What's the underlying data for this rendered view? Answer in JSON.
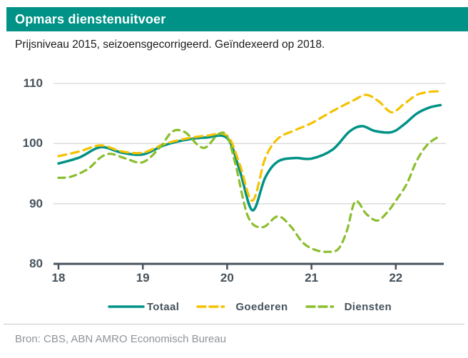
{
  "header": {
    "title": "Opmars dienstenuitvoer"
  },
  "subtitle": "Prijsniveau 2015, seizoensgecorrigeerd. Geïndexeerd op 2018.",
  "source": "Bron: CBS, ABN AMRO Economisch Bureau",
  "colors": {
    "brand_teal": "#009286",
    "goederen_yellow": "#f5c200",
    "diensten_green": "#8abe2e",
    "axis": "#46525c",
    "grid": "#d9d9d9",
    "source_text": "#8f9499"
  },
  "chart_data": {
    "type": "line",
    "title": "Opmars dienstenuitvoer",
    "subtitle": "Prijsniveau 2015, seizoensgecorrigeerd. Geïndexeerd op 2018.",
    "xlabel": "",
    "ylabel": "",
    "xlim": [
      17.94,
      22.6
    ],
    "ylim": [
      80,
      110
    ],
    "x_ticks": [
      18,
      19,
      20,
      21,
      22
    ],
    "x_tick_labels": [
      "18",
      "19",
      "20",
      "21",
      "22"
    ],
    "y_ticks": [
      80,
      90,
      100,
      110
    ],
    "y_tick_labels": [
      "80",
      "90",
      "100",
      "110"
    ],
    "grid": "horizontal",
    "legend_position": "bottom",
    "series": [
      {
        "name": "Totaal",
        "color": "#009286",
        "style": "solid",
        "points": [
          [
            18.0,
            96.7
          ],
          [
            18.25,
            97.7
          ],
          [
            18.5,
            99.4
          ],
          [
            18.75,
            98.5
          ],
          [
            19.0,
            98.2
          ],
          [
            19.25,
            99.7
          ],
          [
            19.5,
            100.6
          ],
          [
            19.75,
            101.0
          ],
          [
            20.0,
            100.9
          ],
          [
            20.15,
            95.5
          ],
          [
            20.3,
            88.9
          ],
          [
            20.45,
            94.3
          ],
          [
            20.6,
            97.0
          ],
          [
            20.8,
            97.6
          ],
          [
            21.0,
            97.5
          ],
          [
            21.25,
            99.0
          ],
          [
            21.45,
            102.0
          ],
          [
            21.6,
            102.9
          ],
          [
            21.75,
            102.1
          ],
          [
            21.95,
            101.9
          ],
          [
            22.1,
            103.2
          ],
          [
            22.25,
            105.0
          ],
          [
            22.4,
            106.0
          ],
          [
            22.53,
            106.4
          ]
        ]
      },
      {
        "name": "Goederen",
        "color": "#f5c200",
        "style": "dashed",
        "points": [
          [
            18.0,
            97.9
          ],
          [
            18.25,
            98.7
          ],
          [
            18.5,
            99.7
          ],
          [
            18.75,
            98.7
          ],
          [
            19.0,
            98.5
          ],
          [
            19.25,
            99.9
          ],
          [
            19.5,
            100.8
          ],
          [
            19.75,
            101.3
          ],
          [
            20.0,
            101.3
          ],
          [
            20.15,
            96.5
          ],
          [
            20.3,
            90.5
          ],
          [
            20.45,
            97.5
          ],
          [
            20.6,
            100.8
          ],
          [
            20.8,
            102.2
          ],
          [
            21.0,
            103.4
          ],
          [
            21.25,
            105.4
          ],
          [
            21.5,
            107.2
          ],
          [
            21.65,
            108.1
          ],
          [
            21.8,
            107.0
          ],
          [
            21.95,
            105.2
          ],
          [
            22.1,
            106.6
          ],
          [
            22.25,
            108.1
          ],
          [
            22.4,
            108.6
          ],
          [
            22.53,
            108.7
          ]
        ]
      },
      {
        "name": "Diensten",
        "color": "#8abe2e",
        "style": "dashed",
        "points": [
          [
            18.0,
            94.3
          ],
          [
            18.15,
            94.5
          ],
          [
            18.35,
            95.8
          ],
          [
            18.5,
            97.7
          ],
          [
            18.62,
            98.3
          ],
          [
            18.8,
            97.5
          ],
          [
            19.0,
            96.9
          ],
          [
            19.2,
            99.3
          ],
          [
            19.35,
            102.0
          ],
          [
            19.5,
            101.9
          ],
          [
            19.65,
            99.8
          ],
          [
            19.75,
            99.4
          ],
          [
            19.9,
            101.6
          ],
          [
            20.0,
            101.2
          ],
          [
            20.1,
            96.5
          ],
          [
            20.25,
            87.8
          ],
          [
            20.42,
            86.1
          ],
          [
            20.6,
            87.9
          ],
          [
            20.75,
            86.3
          ],
          [
            20.9,
            83.5
          ],
          [
            21.05,
            82.3
          ],
          [
            21.2,
            82.0
          ],
          [
            21.32,
            82.5
          ],
          [
            21.42,
            85.5
          ],
          [
            21.52,
            90.4
          ],
          [
            21.65,
            88.3
          ],
          [
            21.78,
            87.2
          ],
          [
            21.9,
            88.6
          ],
          [
            22.0,
            90.5
          ],
          [
            22.13,
            93.3
          ],
          [
            22.25,
            97.2
          ],
          [
            22.38,
            99.9
          ],
          [
            22.53,
            101.3
          ]
        ]
      }
    ]
  }
}
